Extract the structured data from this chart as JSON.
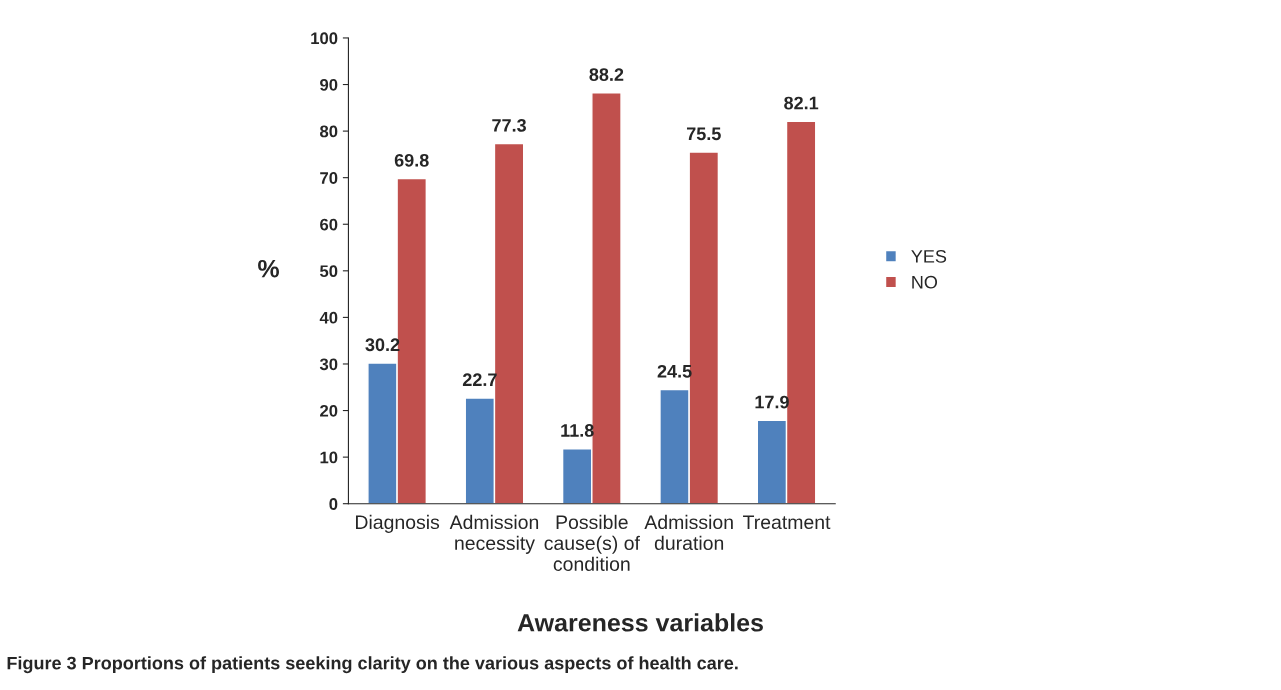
{
  "chart_data": {
    "type": "bar",
    "categories": [
      "Diagnosis",
      "Admission\nnecessity",
      "Possible\ncause(s) of\ncondition",
      "Admission\nduration",
      "Treatment"
    ],
    "series": [
      {
        "name": "YES",
        "color": "#4f81bd",
        "values": [
          30.2,
          22.7,
          11.8,
          24.5,
          17.9
        ]
      },
      {
        "name": "NO",
        "color": "#c0504d",
        "values": [
          69.8,
          77.3,
          88.2,
          75.5,
          82.1
        ]
      }
    ],
    "ylabel": "%",
    "xlabel": "Awareness variables",
    "ylim": [
      0,
      100
    ],
    "yticks": [
      0,
      10,
      20,
      30,
      40,
      50,
      60,
      70,
      80,
      90,
      100
    ],
    "data_labels": true,
    "legend": "right",
    "grid": false,
    "annotations": [
      "Figure 3 Proportions of patients seeking clarity on the various aspects of health care."
    ]
  }
}
